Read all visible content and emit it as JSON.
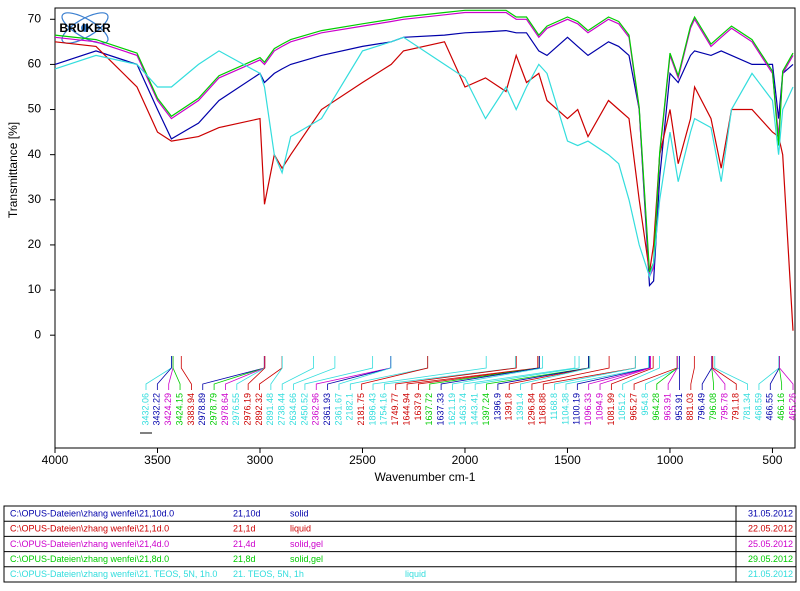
{
  "chart_data": {
    "type": "line",
    "logo": "BRUKER",
    "xlabel": "Wavenumber cm-1",
    "ylabel": "Transmittance [%]",
    "xlim": [
      4000,
      390
    ],
    "ylim": [
      -25,
      72.5
    ],
    "xticks": [
      4000,
      3500,
      3000,
      2500,
      2000,
      1500,
      1000,
      500
    ],
    "yticks": [
      0,
      10,
      20,
      30,
      40,
      50,
      60,
      70
    ],
    "x": [
      4000,
      3800,
      3600,
      3500,
      3432,
      3300,
      3200,
      3000,
      2978,
      2930,
      2892,
      2850,
      2700,
      2500,
      2360,
      2300,
      2100,
      2000,
      1900,
      1800,
      1750,
      1700,
      1640,
      1600,
      1500,
      1450,
      1400,
      1300,
      1250,
      1200,
      1150,
      1100,
      1080,
      1050,
      1000,
      960,
      900,
      880,
      800,
      750,
      700,
      600,
      500,
      470,
      450,
      400
    ],
    "series": [
      {
        "name": "21,10d",
        "color": "#0000aa",
        "file": "C:\\OPUS-Dateien\\zhang wenfei\\21,10d.0",
        "state": "solid",
        "date": "31.05.2012",
        "values": [
          60,
          63,
          60,
          50,
          43.5,
          47,
          52,
          58,
          56,
          58,
          59,
          60,
          62,
          64,
          65,
          66,
          66.5,
          67,
          67.2,
          67.5,
          67,
          67,
          63,
          62,
          66,
          64,
          62,
          65,
          64,
          62,
          50,
          11,
          12,
          35,
          58,
          56,
          62,
          63,
          62,
          63,
          62,
          60,
          60,
          48,
          58,
          60
        ]
      },
      {
        "name": "21,1d",
        "color": "#cc0000",
        "file": "C:\\OPUS-Dateien\\zhang wenfei\\21,1d.0",
        "state": "liquid",
        "date": "22.05.2012",
        "values": [
          65,
          64,
          55,
          45,
          43,
          44,
          46,
          48,
          29,
          40,
          37,
          40,
          50,
          56,
          60,
          63,
          65,
          55,
          57,
          54,
          62,
          56,
          58,
          52,
          48,
          50,
          44,
          52,
          50,
          48,
          30,
          14,
          20,
          40,
          50,
          38,
          48,
          55,
          48,
          37,
          50,
          50,
          45,
          44,
          40,
          1
        ]
      },
      {
        "name": "21,4d",
        "color": "#cc00cc",
        "file": "C:\\OPUS-Dateien\\zhang wenfei\\21,4d.0",
        "state": "solid,gel",
        "date": "25.05.2012",
        "values": [
          66,
          65,
          62,
          52,
          48,
          52,
          57,
          61,
          60,
          63,
          64,
          65,
          67,
          68.5,
          69.5,
          70,
          71,
          71.5,
          71.5,
          71.5,
          70,
          70,
          66,
          68,
          70,
          69,
          67,
          70,
          69,
          66,
          50,
          13,
          15,
          40,
          62,
          57,
          68,
          70,
          64,
          66,
          68,
          65,
          58,
          44,
          58,
          62
        ]
      },
      {
        "name": "21,8d",
        "color": "#00cc00",
        "file": "C:\\OPUS-Dateien\\zhang wenfei\\21,8d.0",
        "state": "solid,gel",
        "date": "29.05.2012",
        "values": [
          66.5,
          65.5,
          62.5,
          52.5,
          48.5,
          52.5,
          57.5,
          61.5,
          60.5,
          63.5,
          64.5,
          65.5,
          67.5,
          69,
          70,
          70.5,
          71.5,
          72,
          72,
          72,
          70.5,
          70.5,
          66.5,
          68.5,
          70.5,
          69.5,
          67.5,
          70.5,
          69.5,
          66.5,
          50.5,
          14,
          16,
          40.5,
          62.5,
          57.5,
          68.5,
          70.5,
          64.5,
          66.5,
          68.5,
          65.5,
          58.5,
          42,
          58.5,
          62.5
        ]
      },
      {
        "name": "21. TEOS, 5N, 1h",
        "color": "#33dddd",
        "file": "C:\\OPUS-Dateien\\zhang wenfei\\21. TEOS, 5N, 1h.0",
        "state": "liquid",
        "date": "21.05.2012",
        "values": [
          59,
          62,
          60,
          55,
          55,
          60,
          63,
          58,
          55,
          40,
          36,
          44,
          48,
          63,
          65,
          66,
          60,
          57,
          48,
          55,
          50,
          55,
          60,
          58,
          43,
          42,
          43,
          40,
          38,
          30,
          20,
          13,
          16,
          30,
          45,
          34,
          45,
          48,
          46,
          34,
          50,
          58,
          52,
          40,
          50,
          55
        ]
      }
    ],
    "peaks": [
      {
        "x": 3432.06,
        "color": "#33dddd"
      },
      {
        "x": 3432.22,
        "color": "#0000aa"
      },
      {
        "x": 3424.29,
        "color": "#cc00cc"
      },
      {
        "x": 3424.15,
        "color": "#00cc00"
      },
      {
        "x": 3383.94,
        "color": "#cc0000"
      },
      {
        "x": 2978.89,
        "color": "#0000aa"
      },
      {
        "x": 2978.79,
        "color": "#00cc00"
      },
      {
        "x": 2978.64,
        "color": "#cc00cc"
      },
      {
        "x": 2976.55,
        "color": "#33dddd"
      },
      {
        "x": 2976.19,
        "color": "#cc0000"
      },
      {
        "x": 2892.32,
        "color": "#cc0000"
      },
      {
        "x": 2891.48,
        "color": "#33dddd"
      },
      {
        "x": 2738.44,
        "color": "#33dddd"
      },
      {
        "x": 2634.66,
        "color": "#33dddd"
      },
      {
        "x": 2450.52,
        "color": "#33dddd"
      },
      {
        "x": 2362.96,
        "color": "#cc00cc"
      },
      {
        "x": 2361.93,
        "color": "#0000aa"
      },
      {
        "x": 2361.67,
        "color": "#33dddd"
      },
      {
        "x": 2182.1,
        "color": "#33dddd"
      },
      {
        "x": 2181.75,
        "color": "#cc0000"
      },
      {
        "x": 1896.43,
        "color": "#33dddd"
      },
      {
        "x": 1754.16,
        "color": "#33dddd"
      },
      {
        "x": 1749.77,
        "color": "#cc0000"
      },
      {
        "x": 1644.94,
        "color": "#cc0000"
      },
      {
        "x": 1637.9,
        "color": "#cc0000"
      },
      {
        "x": 1637.72,
        "color": "#00cc00"
      },
      {
        "x": 1637.33,
        "color": "#0000aa"
      },
      {
        "x": 1621.19,
        "color": "#33dddd"
      },
      {
        "x": 1463.74,
        "color": "#33dddd"
      },
      {
        "x": 1443.41,
        "color": "#33dddd"
      },
      {
        "x": 1397.24,
        "color": "#00cc00"
      },
      {
        "x": 1396.9,
        "color": "#0000aa"
      },
      {
        "x": 1391.8,
        "color": "#cc0000"
      },
      {
        "x": 1391.4,
        "color": "#33dddd"
      },
      {
        "x": 1296.84,
        "color": "#cc0000"
      },
      {
        "x": 1168.88,
        "color": "#cc0000"
      },
      {
        "x": 1168.8,
        "color": "#33dddd"
      },
      {
        "x": 1104.38,
        "color": "#33dddd"
      },
      {
        "x": 1100.19,
        "color": "#0000aa"
      },
      {
        "x": 1096.33,
        "color": "#cc00cc"
      },
      {
        "x": 1094.9,
        "color": "#cc00cc"
      },
      {
        "x": 1081.99,
        "color": "#cc0000"
      },
      {
        "x": 1051.2,
        "color": "#33dddd"
      },
      {
        "x": 965.27,
        "color": "#cc0000"
      },
      {
        "x": 954.8,
        "color": "#33dddd"
      },
      {
        "x": 964.28,
        "color": "#00cc00"
      },
      {
        "x": 963.91,
        "color": "#cc00cc"
      },
      {
        "x": 953.91,
        "color": "#0000aa"
      },
      {
        "x": 881.03,
        "color": "#cc0000"
      },
      {
        "x": 796.49,
        "color": "#0000aa"
      },
      {
        "x": 796.08,
        "color": "#00cc00"
      },
      {
        "x": 795.78,
        "color": "#cc00cc"
      },
      {
        "x": 791.18,
        "color": "#cc0000"
      },
      {
        "x": 781.34,
        "color": "#33dddd"
      },
      {
        "x": 468.59,
        "color": "#33dddd"
      },
      {
        "x": 466.55,
        "color": "#0000aa"
      },
      {
        "x": 466.16,
        "color": "#00cc00"
      },
      {
        "x": 465.26,
        "color": "#cc00cc"
      }
    ]
  }
}
